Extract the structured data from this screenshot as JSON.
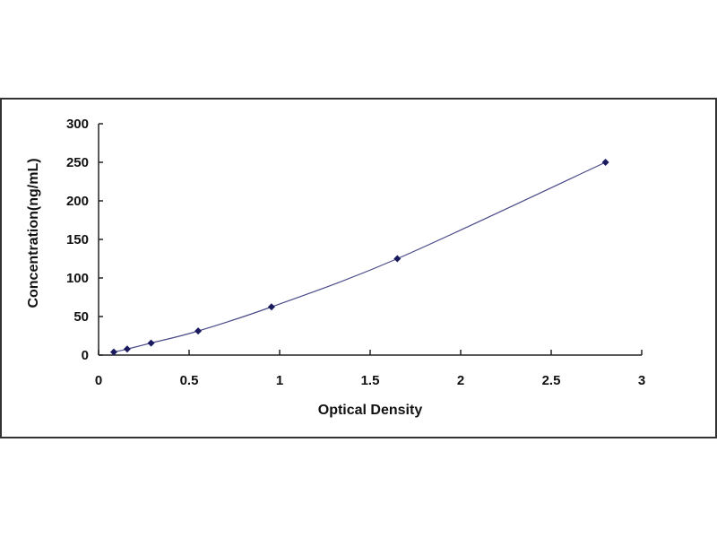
{
  "chart_data": {
    "type": "scatter",
    "title": "",
    "xlabel": "Optical Density",
    "ylabel": "Concentration(ng/mL)",
    "xlim": [
      0,
      3
    ],
    "ylim": [
      0,
      300
    ],
    "xticks": [
      "0",
      "0.5",
      "1",
      "1.5",
      "2",
      "2.5",
      "3"
    ],
    "yticks": [
      "0",
      "50",
      "100",
      "150",
      "200",
      "250",
      "300"
    ],
    "grid": false,
    "series": [
      {
        "x": [
          0.084,
          0.158,
          0.29,
          0.55,
          0.955,
          1.65,
          2.8
        ],
        "y": [
          3.9,
          7.8,
          15.6,
          31.25,
          62.5,
          125,
          250
        ],
        "marker": "diamond",
        "fit_line": true
      }
    ],
    "colors": {
      "marker": "#1a1a5e",
      "line": "#4a4a8a",
      "axis": "#222222",
      "frame": "#333333"
    }
  }
}
